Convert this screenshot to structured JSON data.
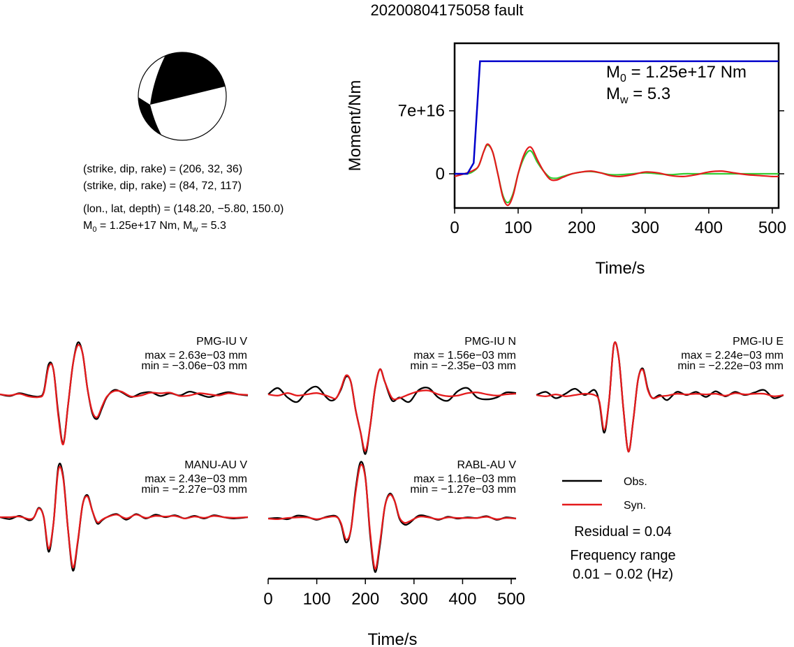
{
  "title": "20200804175058 fault",
  "mechanism": {
    "planes": [
      {
        "label": "(strike, dip, rake) = ",
        "value": "(206, 32, 36)"
      },
      {
        "label": "(strike, dip, rake) = ",
        "value": "(84, 72, 117)"
      }
    ],
    "location_label": "(lon., lat, depth) = ",
    "location_value": "(148.20, −5.80, 150.0)",
    "moment_line": {
      "m": "M",
      "sub0": "0",
      "m0_value": " = 1.25e+17 Nm, M",
      "subw": "w",
      "mw_value": " = 5.3"
    }
  },
  "moment_plot": {
    "ylabel": "Moment/Nm",
    "xlabel": "Time/s",
    "annotation_m0": {
      "m": "M",
      "sub": "0",
      "value": " = 1.25e+17 Nm"
    },
    "annotation_mw": {
      "m": "M",
      "sub": "w",
      "value": " = 5.3"
    }
  },
  "legend": {
    "obs": "Obs.",
    "syn": "Syn."
  },
  "residual": "Residual = 0.04",
  "frequency_range_label": "Frequency range",
  "frequency_range_value": "0.01 − 0.02 (Hz)",
  "waveform_xlabel": "Time/s",
  "colors": {
    "obs": "#000000",
    "syn": "#e41a1c",
    "cumulative": "#0000cc",
    "moment_rate_alt": "#33cc33",
    "frame": "#000000"
  },
  "chart_data": [
    {
      "type": "line",
      "name": "moment-function",
      "xlabel": "Time/s",
      "ylabel": "Moment/Nm",
      "xlim": [
        0,
        510
      ],
      "ylim": [
        -3.8e+16,
        1.45e+17
      ],
      "xticks": [
        0,
        100,
        200,
        300,
        400,
        500
      ],
      "yticks": [
        {
          "value": 0,
          "label": "0"
        },
        {
          "value": 7e+16,
          "label": "7e+16"
        }
      ],
      "cumulative": {
        "x": [
          0,
          20,
          30,
          40,
          510
        ],
        "y": [
          0,
          0,
          1.2e+16,
          1.25e+17,
          1.25e+17
        ]
      },
      "moment_rate": {
        "x": [
          0,
          20,
          30,
          38,
          46,
          52,
          60,
          68,
          76,
          84,
          92,
          100,
          108,
          116,
          122,
          130,
          140,
          150,
          160,
          170,
          185,
          200,
          215,
          230,
          245,
          260,
          280,
          300,
          320,
          340,
          360,
          380,
          400,
          420,
          440,
          460,
          480,
          500,
          510
        ],
        "red": [
          -3000000000000000.0,
          1000000000000000.0,
          4000000000000000.0,
          9000000000000000.0,
          2.5e+16,
          3.3e+16,
          2.4e+16,
          0,
          -2.6e+16,
          -3.5e+16,
          -2.4e+16,
          0,
          1.9e+16,
          2.9e+16,
          2.8e+16,
          1.6e+16,
          3000000000000000.0,
          -6000000000000000.0,
          -7000000000000000.0,
          -4000000000000000.0,
          0,
          2000000000000000.0,
          3000000000000000.0,
          1000000000000000.0,
          -2000000000000000.0,
          -3000000000000000.0,
          -1000000000000000.0,
          2000000000000000.0,
          1000000000000000.0,
          -2000000000000000.0,
          -3000000000000000.0,
          -1000000000000000.0,
          2000000000000000.0,
          3000000000000000.0,
          1000000000000000.0,
          -1000000000000000.0,
          -2000000000000000.0,
          -3000000000000000.0,
          -3000000000000000.0
        ],
        "green": [
          0,
          0,
          3000000000000000.0,
          9000000000000000.0,
          2.5e+16,
          3.2e+16,
          2.4e+16,
          0,
          -2.4e+16,
          -3.2e+16,
          -2.2e+16,
          0,
          1.6e+16,
          2.5e+16,
          2.4e+16,
          1.3e+16,
          3000000000000000.0,
          -4000000000000000.0,
          -5000000000000000.0,
          -3000000000000000.0,
          0,
          2000000000000000.0,
          2500000000000000.0,
          1000000000000000.0,
          -1000000000000000.0,
          -1000000000000000.0,
          0,
          1000000000000000.0,
          0,
          -1000000000000000.0,
          0,
          0,
          0,
          0,
          0,
          0,
          0,
          0,
          0
        ]
      }
    },
    {
      "type": "line",
      "name": "PMG-IU V",
      "max_label": "max = 2.63e−03 mm",
      "min_label": "min = −3.06e−03 mm",
      "x": [
        0,
        20,
        40,
        60,
        80,
        90,
        100,
        110,
        120,
        130,
        140,
        150,
        160,
        170,
        180,
        190,
        200,
        210,
        220,
        235,
        250,
        270,
        290,
        310,
        330,
        350,
        370,
        390,
        410,
        430,
        450,
        470,
        490,
        510
      ],
      "obs": [
        0,
        -0.03,
        0.02,
        -0.02,
        -0.04,
        0.05,
        0.55,
        0.45,
        -0.35,
        -0.9,
        -0.2,
        0.55,
        0.95,
        0.75,
        0.1,
        -0.35,
        -0.45,
        -0.25,
        -0.05,
        0.08,
        0.04,
        -0.05,
        0.02,
        0.04,
        -0.03,
        0.02,
        -0.02,
        0.05,
        0.0,
        -0.05,
        0.0,
        0.04,
        0.0,
        -0.02
      ],
      "syn": [
        0,
        -0.02,
        0.01,
        -0.04,
        -0.05,
        0.03,
        0.5,
        0.45,
        -0.4,
        -0.92,
        -0.2,
        0.55,
        0.9,
        0.75,
        0.1,
        -0.32,
        -0.42,
        -0.22,
        -0.04,
        0.06,
        0.05,
        -0.04,
        -0.02,
        0.03,
        0.02,
        0.03,
        -0.03,
        -0.02,
        0.02,
        0.0,
        -0.02,
        0.02,
        0.0,
        -0.01
      ]
    },
    {
      "type": "line",
      "name": "PMG-IU N",
      "max_label": "max = 1.56e−03 mm",
      "min_label": "min = −2.35e−03 mm",
      "x": [
        0,
        20,
        40,
        60,
        80,
        100,
        120,
        130,
        140,
        150,
        160,
        170,
        180,
        190,
        200,
        210,
        220,
        230,
        240,
        255,
        270,
        290,
        310,
        330,
        350,
        370,
        390,
        410,
        430,
        450,
        470,
        490,
        510
      ],
      "obs": [
        0,
        0.1,
        -0.05,
        -0.12,
        0.05,
        0.12,
        -0.05,
        -0.1,
        -0.06,
        0.08,
        0.28,
        0.2,
        -0.25,
        -0.6,
        -0.95,
        -0.5,
        0.1,
        0.4,
        0.2,
        -0.1,
        -0.05,
        -0.12,
        0.07,
        0.1,
        -0.05,
        -0.1,
        0.05,
        0.1,
        -0.05,
        -0.08,
        -0.05,
        0.03,
        0.02
      ],
      "syn": [
        0,
        -0.02,
        0.02,
        -0.02,
        0.0,
        0.02,
        -0.02,
        -0.05,
        -0.06,
        0.1,
        0.3,
        0.2,
        -0.25,
        -0.6,
        -0.9,
        -0.5,
        0.1,
        0.4,
        0.2,
        -0.06,
        -0.06,
        0.0,
        0.05,
        0.06,
        0.0,
        -0.03,
        -0.02,
        0.02,
        0.03,
        0.0,
        -0.02,
        0.0,
        0.01
      ]
    },
    {
      "type": "line",
      "name": "PMG-IU E",
      "max_label": "max = 2.24e−03 mm",
      "min_label": "min = −2.22e−03 mm",
      "x": [
        0,
        20,
        40,
        60,
        80,
        100,
        120,
        130,
        140,
        150,
        160,
        170,
        180,
        190,
        200,
        210,
        220,
        230,
        240,
        255,
        270,
        290,
        310,
        330,
        350,
        370,
        390,
        410,
        430,
        450,
        470,
        490,
        510
      ],
      "obs": [
        0,
        0.05,
        -0.05,
        0.02,
        0.1,
        0.0,
        0.08,
        -0.12,
        -0.6,
        -0.1,
        0.8,
        0.6,
        -0.25,
        -0.9,
        -0.4,
        0.25,
        0.42,
        0.1,
        -0.05,
        0.0,
        -0.08,
        0.05,
        0.0,
        0.05,
        -0.03,
        0.06,
        -0.02,
        0.05,
        0.0,
        0.04,
        0.08,
        -0.05,
        0.0
      ],
      "syn": [
        0,
        -0.02,
        0.01,
        -0.02,
        0.0,
        0.02,
        0.0,
        -0.1,
        -0.55,
        -0.1,
        0.8,
        0.6,
        -0.25,
        -0.9,
        -0.4,
        0.25,
        0.4,
        0.08,
        -0.05,
        -0.02,
        -0.01,
        0.02,
        0.01,
        0.02,
        0.01,
        0.02,
        -0.01,
        0.03,
        0.01,
        0.02,
        0.02,
        -0.02,
        0.0
      ]
    },
    {
      "type": "line",
      "name": "MANU-AU V",
      "max_label": "max = 2.43e−03 mm",
      "min_label": "min = −2.27e−03 mm",
      "x": [
        0,
        20,
        40,
        60,
        70,
        80,
        90,
        100,
        110,
        120,
        130,
        140,
        150,
        160,
        170,
        180,
        190,
        200,
        210,
        220,
        240,
        260,
        280,
        300,
        320,
        340,
        360,
        380,
        400,
        420,
        440,
        460,
        480,
        510
      ],
      "obs": [
        0,
        -0.03,
        0.02,
        -0.05,
        0.0,
        0.15,
        0.0,
        -0.55,
        -0.1,
        0.8,
        0.65,
        -0.2,
        -0.85,
        -0.4,
        0.2,
        0.35,
        0.1,
        -0.1,
        -0.05,
        0.0,
        0.05,
        -0.04,
        0.05,
        -0.02,
        0.04,
        0.0,
        0.03,
        -0.02,
        0.02,
        -0.02,
        0.03,
        0.0,
        -0.02,
        0.0
      ],
      "syn": [
        0,
        0.0,
        0.01,
        -0.03,
        0.0,
        0.14,
        0.0,
        -0.5,
        -0.1,
        0.75,
        0.62,
        -0.2,
        -0.8,
        -0.38,
        0.2,
        0.33,
        0.1,
        -0.08,
        -0.04,
        0.0,
        0.04,
        -0.02,
        0.04,
        -0.01,
        0.02,
        0.01,
        0.02,
        -0.02,
        0.01,
        -0.01,
        0.02,
        0.0,
        -0.01,
        0.0
      ]
    },
    {
      "type": "line",
      "name": "RABL-AU V",
      "max_label": "max = 1.16e−03 mm",
      "min_label": "min = −1.27e−03 mm",
      "x": [
        0,
        20,
        40,
        60,
        80,
        100,
        120,
        140,
        150,
        160,
        170,
        180,
        190,
        200,
        210,
        220,
        230,
        240,
        250,
        260,
        270,
        280,
        290,
        310,
        330,
        350,
        370,
        390,
        410,
        430,
        450,
        470,
        490,
        510
      ],
      "obs": [
        0,
        0.01,
        -0.01,
        0.05,
        0.03,
        -0.02,
        0.03,
        0.04,
        -0.1,
        -0.4,
        -0.2,
        0.5,
        0.95,
        0.7,
        -0.3,
        -0.9,
        -0.45,
        0.2,
        0.42,
        0.3,
        0.0,
        -0.1,
        -0.08,
        0.05,
        0.03,
        -0.02,
        0.03,
        0.0,
        0.02,
        0.01,
        0.04,
        -0.02,
        0.02,
        0.0
      ],
      "syn": [
        0,
        -0.01,
        0.01,
        0.02,
        0.02,
        -0.01,
        0.02,
        0.03,
        -0.08,
        -0.35,
        -0.2,
        0.45,
        0.9,
        0.68,
        -0.25,
        -0.85,
        -0.4,
        0.2,
        0.4,
        0.3,
        0.02,
        -0.07,
        -0.05,
        0.03,
        0.02,
        -0.01,
        0.02,
        0.01,
        0.01,
        0.01,
        0.03,
        -0.01,
        0.01,
        0.0
      ],
      "xlabel": "Time/s",
      "xticks": [
        0,
        100,
        200,
        300,
        400,
        500
      ],
      "xlim": [
        0,
        510
      ]
    }
  ]
}
